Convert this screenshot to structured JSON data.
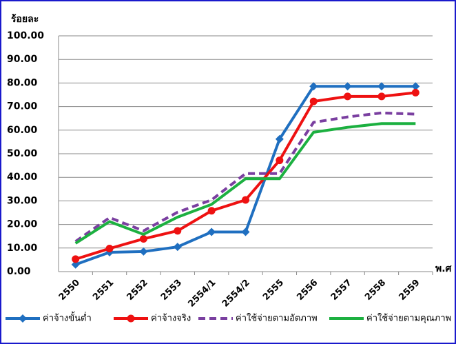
{
  "chart_data": {
    "type": "line",
    "y_label": "ร้อยละ",
    "x_label": "พ.ศ",
    "categories": [
      "2550",
      "2551",
      "2552",
      "2553",
      "2554/1",
      "2554/2",
      "2555",
      "2556",
      "2557",
      "2558",
      "2559"
    ],
    "series": [
      {
        "name": "ค่าจ้างขั้นต่ำ",
        "color": "#1f6fc0",
        "marker": "diamond",
        "dash": false,
        "values": [
          3.0,
          8.2,
          8.5,
          10.5,
          16.8,
          16.8,
          56.2,
          78.6,
          78.6,
          78.6,
          78.6
        ]
      },
      {
        "name": "ค่าจ้างจริง",
        "color": "#ee1111",
        "marker": "circle",
        "dash": false,
        "values": [
          5.3,
          9.8,
          13.9,
          17.3,
          25.8,
          30.4,
          47.2,
          72.2,
          74.3,
          74.3,
          75.9
        ]
      },
      {
        "name": "ค่าใช้จ่ายตามอัตภาพ",
        "color": "#7a3fa0",
        "marker": "none",
        "dash": true,
        "values": [
          12.8,
          22.9,
          17.3,
          25.2,
          30.4,
          41.6,
          41.6,
          63.3,
          65.6,
          67.3,
          66.8
        ]
      },
      {
        "name": "ค่าใช้จ่ายตามคุณภาพ",
        "color": "#1cb040",
        "marker": "none",
        "dash": false,
        "values": [
          12.0,
          21.2,
          15.8,
          23.1,
          28.5,
          39.4,
          39.4,
          59.1,
          61.2,
          62.8,
          62.8
        ]
      }
    ],
    "ylim": [
      0,
      100
    ],
    "yticks": [
      {
        "value": 0,
        "label": "0.00"
      },
      {
        "value": 10,
        "label": "10.00"
      },
      {
        "value": 20,
        "label": "20.00"
      },
      {
        "value": 30,
        "label": "30.00"
      },
      {
        "value": 40,
        "label": "40.00"
      },
      {
        "value": 50,
        "label": "50.00"
      },
      {
        "value": 60,
        "label": "60.00"
      },
      {
        "value": 70,
        "label": "70.00"
      },
      {
        "value": 80,
        "label": "80.00"
      },
      {
        "value": 90,
        "label": "90.00"
      },
      {
        "value": 100,
        "label": "100.00"
      }
    ],
    "grid": true,
    "legend": "bottom"
  }
}
